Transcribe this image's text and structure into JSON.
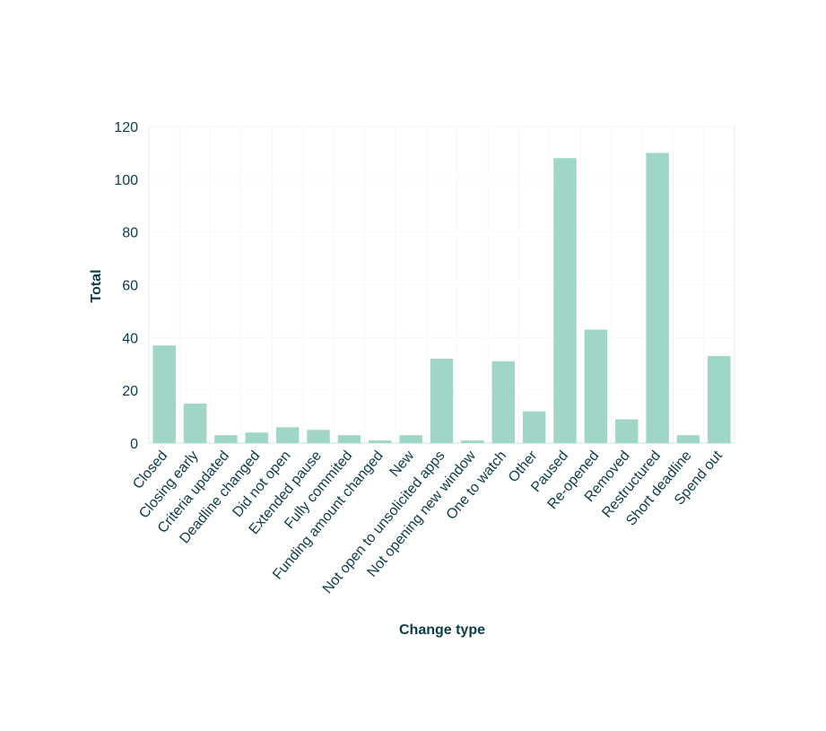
{
  "chart_data": {
    "type": "bar",
    "title": "",
    "xlabel": "Change type",
    "ylabel": "Total",
    "ylim": [
      0,
      120
    ],
    "yticks": [
      0,
      20,
      40,
      60,
      80,
      100,
      120
    ],
    "grid": true,
    "categories": [
      "Closed",
      "Closing early",
      "Criteria updated",
      "Deadline changed",
      "Did not open",
      "Extended pause",
      "Fully commited",
      "Funding amount changed",
      "New",
      "Not open to unsolicited apps",
      "Not opening new window",
      "One to watch",
      "Other",
      "Paused",
      "Re-opened",
      "Removed",
      "Restructured",
      "Short deadline",
      "Spend out"
    ],
    "values": [
      37,
      15,
      3,
      4,
      6,
      5,
      3,
      1,
      3,
      32,
      1,
      31,
      12,
      108,
      43,
      9,
      110,
      3,
      33
    ],
    "colors": {
      "bar": "#9fd6c7",
      "text": "#0b3c49",
      "axis": "#d8eeea",
      "grid": "#f6f9f9"
    }
  }
}
